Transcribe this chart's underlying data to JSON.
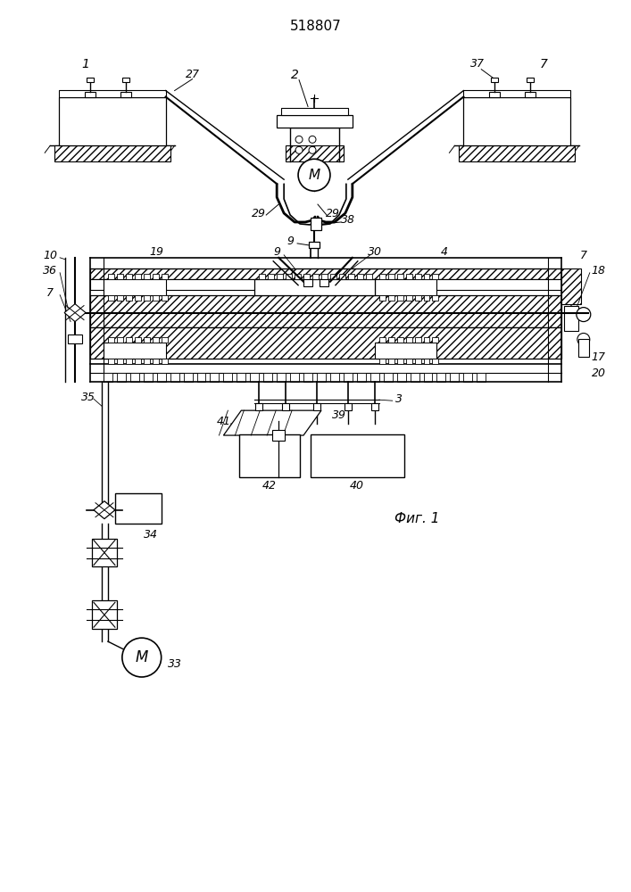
{
  "title": "518807",
  "caption": "Фиг. 1",
  "bg_color": "#ffffff",
  "line_color": "#000000",
  "title_fontsize": 11,
  "caption_fontsize": 11,
  "label_fontsize": 9
}
